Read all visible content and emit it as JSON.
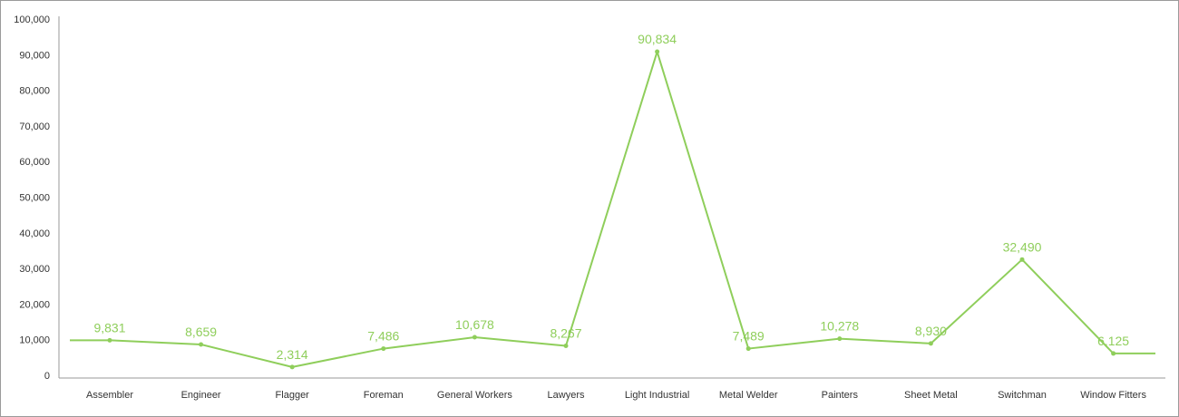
{
  "chart_data": {
    "type": "line",
    "title": "",
    "xlabel": "",
    "ylabel": "",
    "ylim": [
      0,
      100000
    ],
    "yticks": [
      "0",
      "10,000",
      "20,000",
      "30,000",
      "40,000",
      "50,000",
      "60,000",
      "70,000",
      "80,000",
      "90,000",
      "100,000"
    ],
    "ytick_values": [
      0,
      10000,
      20000,
      30000,
      40000,
      50000,
      60000,
      70000,
      80000,
      90000,
      100000
    ],
    "categories": [
      "Assembler",
      "Engineer",
      "Flagger",
      "Foreman",
      "General Workers",
      "Lawyers",
      "Light Industrial",
      "Metal Welder",
      "Painters",
      "Sheet Metal",
      "Switchman",
      "Window Fitters"
    ],
    "values": [
      9831,
      8659,
      2314,
      7486,
      10678,
      8267,
      90834,
      7489,
      10278,
      8930,
      32490,
      6125
    ],
    "data_labels": [
      "9,831",
      "8,659",
      "2,314",
      "7,486",
      "10,678",
      "8,267",
      "90,834",
      "7,489",
      "10,278",
      "8,930",
      "32,490",
      "6,125"
    ],
    "grid": false,
    "legend": "none",
    "line_color": "#8fce5b",
    "axis_color": "#9a9a9a"
  }
}
